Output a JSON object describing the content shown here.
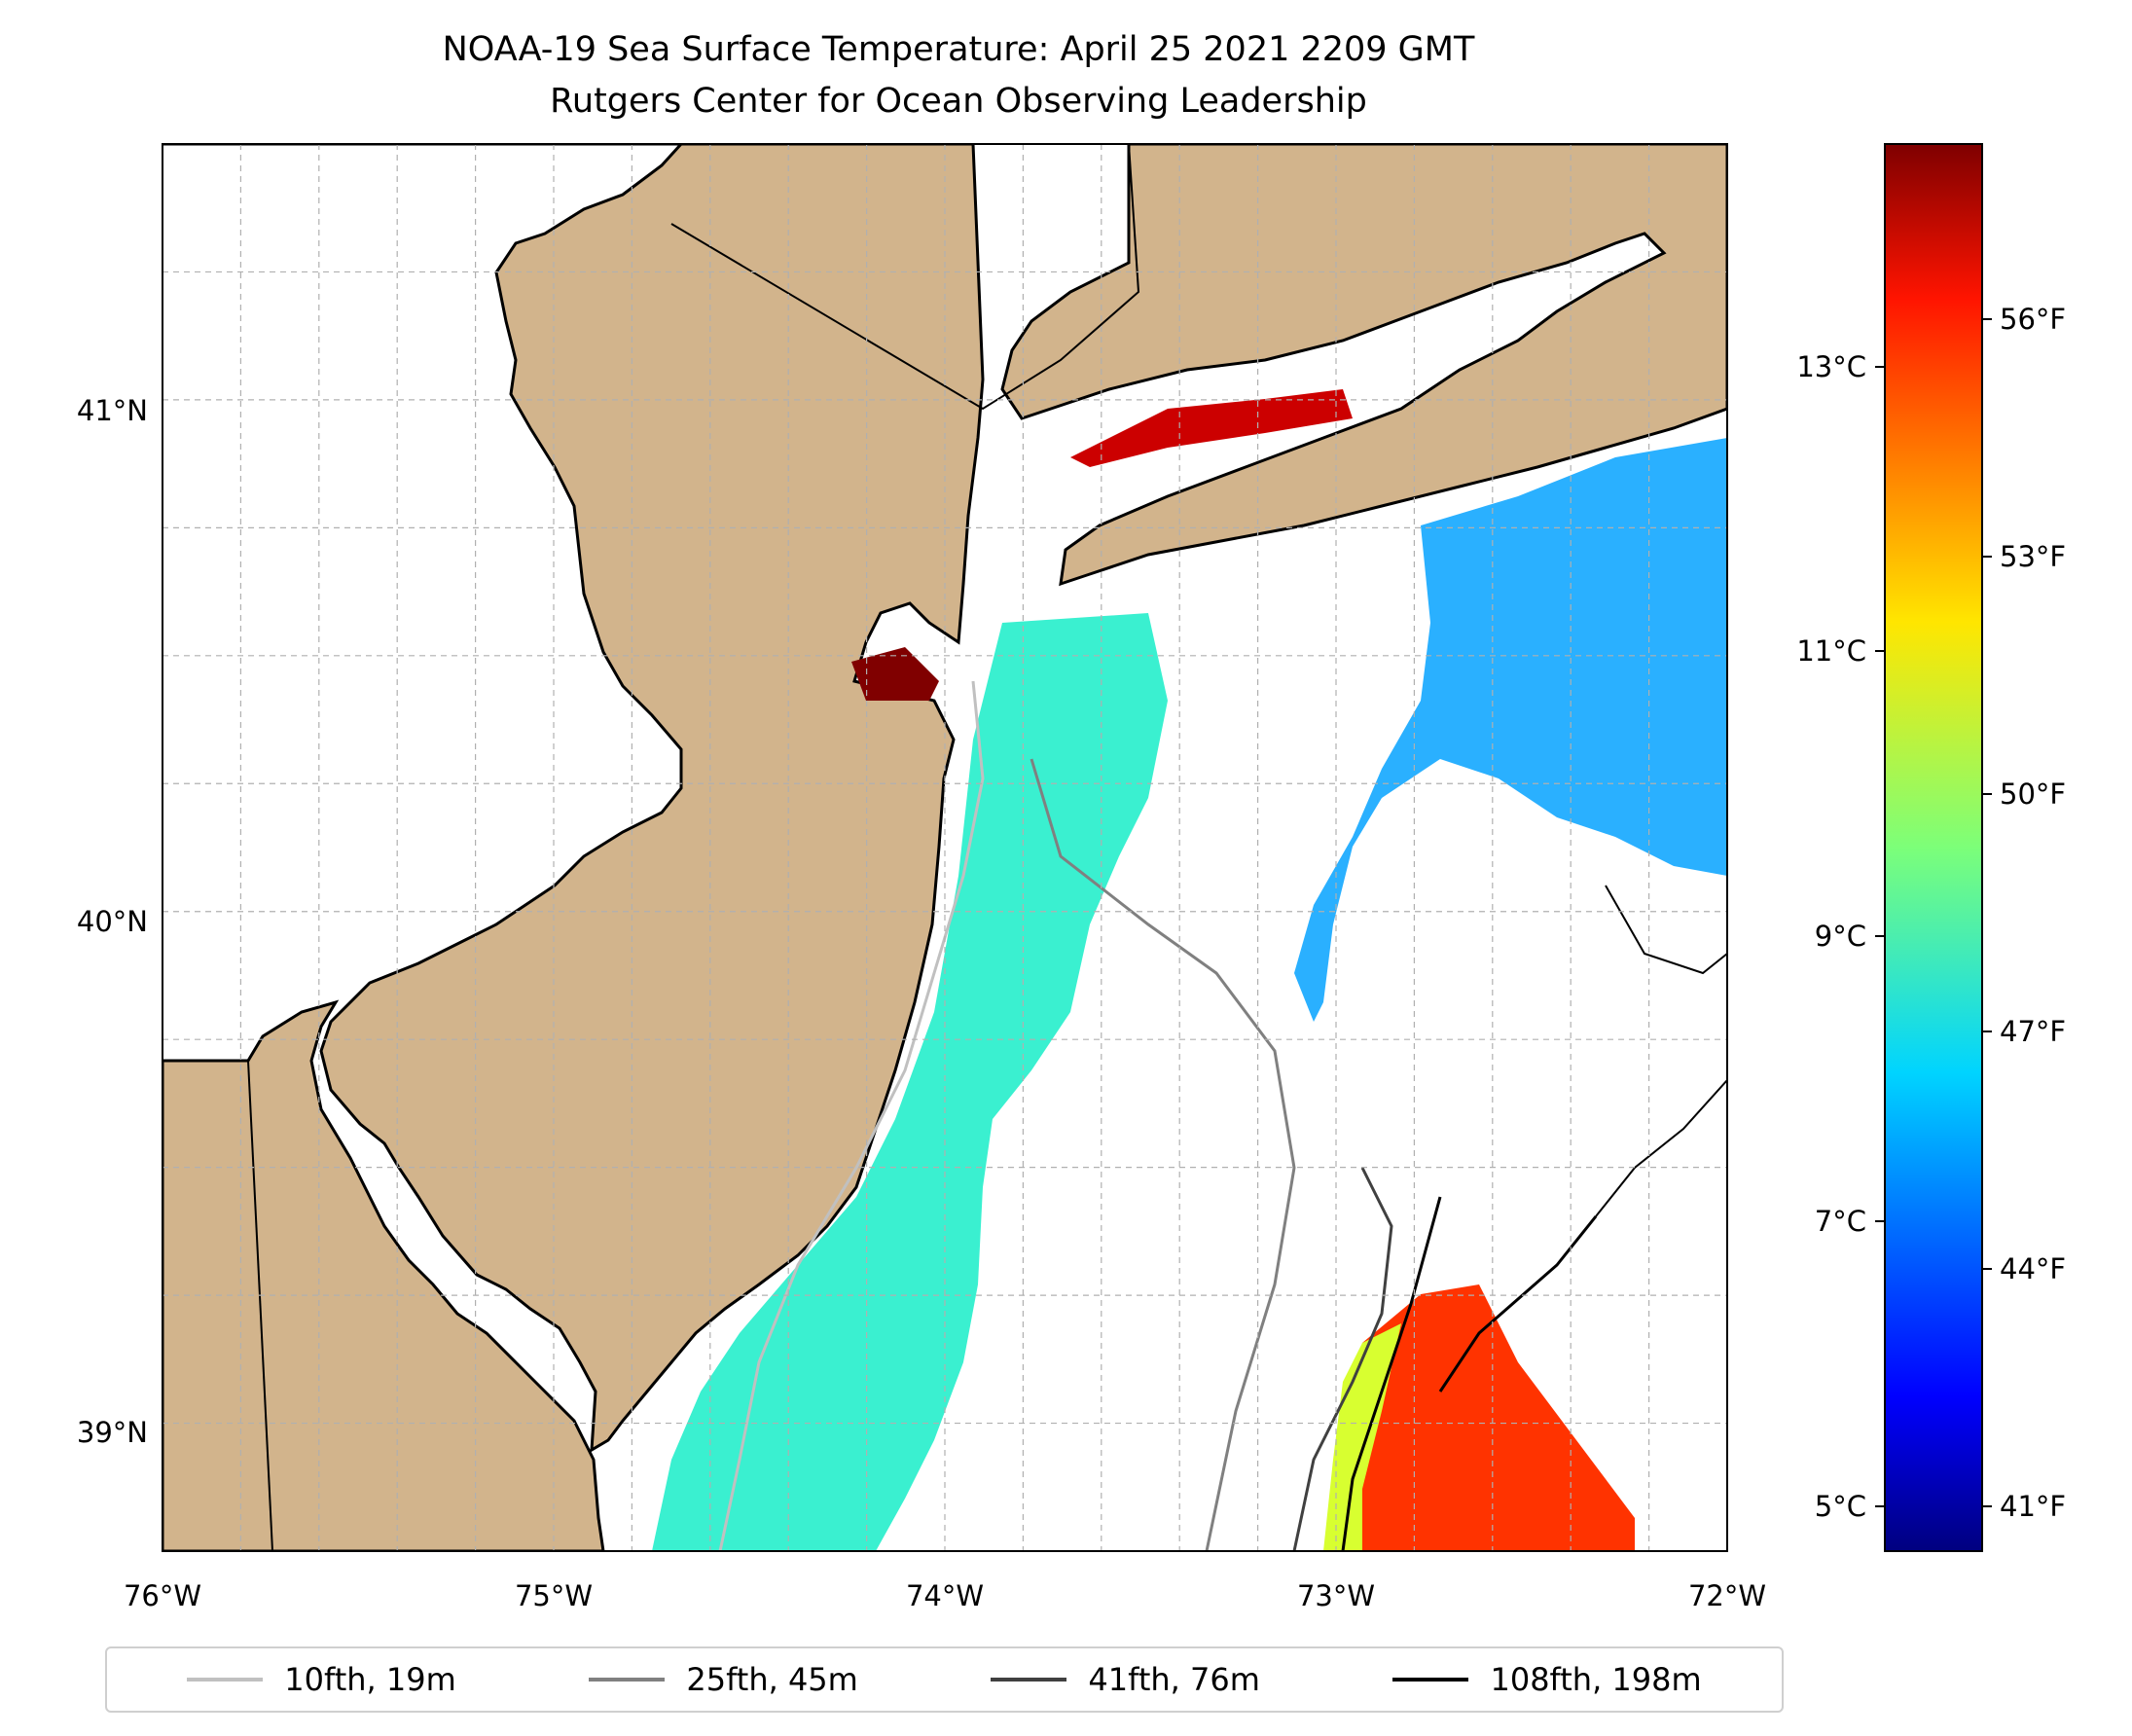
{
  "title": {
    "line1": "NOAA-19 Sea Surface Temperature: April 25 2021 2209 GMT",
    "line2": "Rutgers Center for Ocean Observing Leadership"
  },
  "axes": {
    "lon_ticks": [
      "76°W",
      "75°W",
      "74°W",
      "73°W",
      "72°W"
    ],
    "lat_ticks": [
      "41°N",
      "40°N",
      "39°N"
    ]
  },
  "colorbar": {
    "celsius_ticks": [
      "13°C",
      "11°C",
      "9°C",
      "7°C",
      "5°C"
    ],
    "fahrenheit_ticks": [
      "56°F",
      "53°F",
      "50°F",
      "47°F",
      "44°F",
      "41°F"
    ],
    "colormap": "jet",
    "range_c": [
      4.7,
      14.6
    ]
  },
  "legend": {
    "items": [
      {
        "label": "10fth, 19m",
        "color": "#c0c0c0"
      },
      {
        "label": "25fth, 45m",
        "color": "#808080"
      },
      {
        "label": "41fth, 76m",
        "color": "#404040"
      },
      {
        "label": "108fth, 198m",
        "color": "#000000"
      }
    ]
  },
  "colors": {
    "land": "#d2b48c",
    "ocean_missing": "#ffffff",
    "gridline": "#b0b0b0",
    "coastline": "#000000"
  },
  "map": {
    "lon_range": [
      -76,
      -72
    ],
    "lat_range": [
      38.75,
      41.5
    ]
  }
}
